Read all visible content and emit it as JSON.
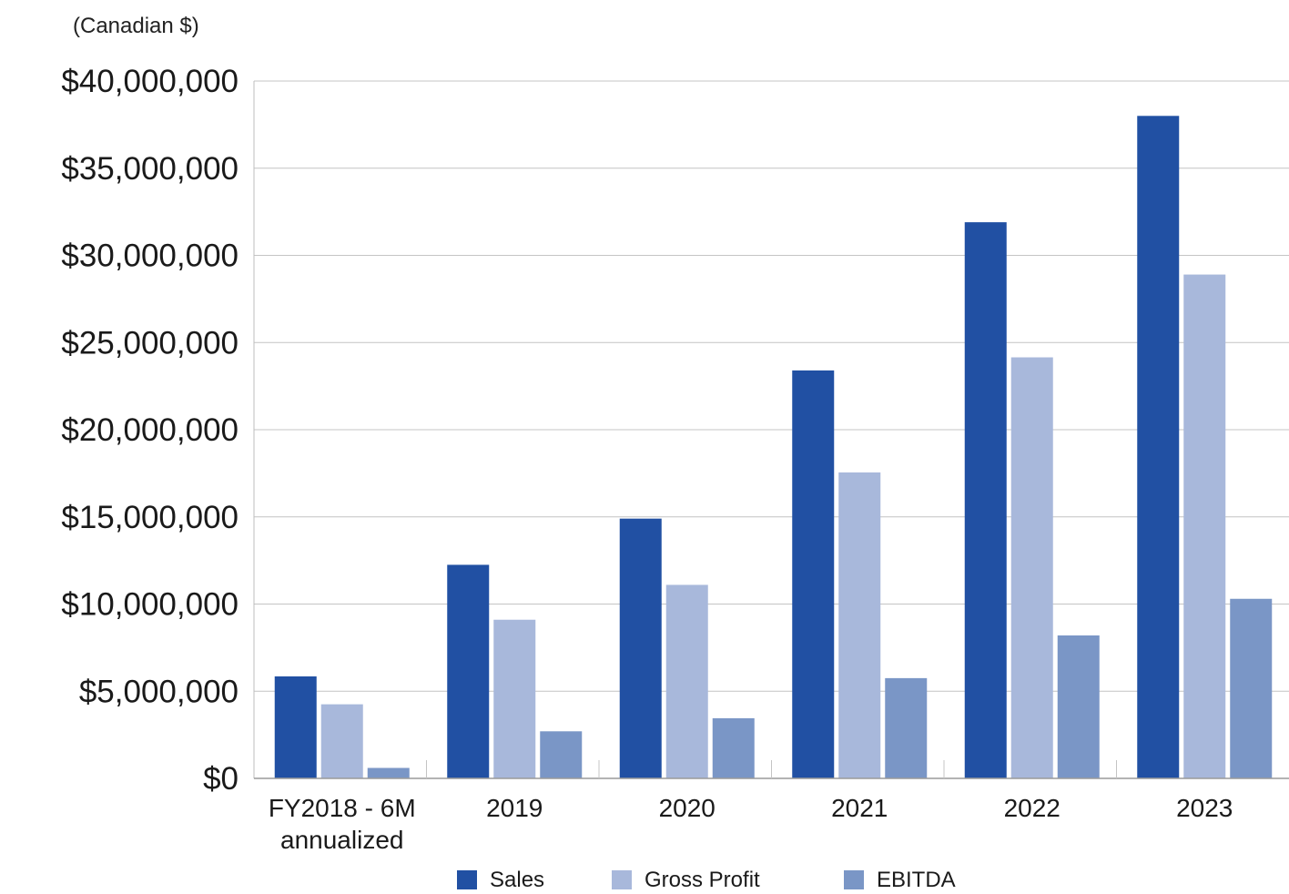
{
  "chart_data": {
    "type": "bar",
    "units_label": "(Canadian $)",
    "categories": [
      [
        "FY2018 - 6M",
        "annualized"
      ],
      [
        "2019"
      ],
      [
        "2020"
      ],
      [
        "2021"
      ],
      [
        "2022"
      ],
      [
        "2023"
      ]
    ],
    "series": [
      {
        "name": "Sales",
        "color": "#2150a3",
        "values": [
          5850000,
          12250000,
          14900000,
          23400000,
          31900000,
          38000000
        ]
      },
      {
        "name": "Gross Profit",
        "color": "#a8b8db",
        "values": [
          4250000,
          9100000,
          11100000,
          17550000,
          24150000,
          28900000
        ]
      },
      {
        "name": "EBITDA",
        "color": "#7a96c6",
        "values": [
          600000,
          2700000,
          3450000,
          5750000,
          8200000,
          10300000
        ]
      }
    ],
    "y_ticks": [
      {
        "value": 0,
        "label": "$0"
      },
      {
        "value": 5000000,
        "label": "$5,000,000"
      },
      {
        "value": 10000000,
        "label": "$10,000,000"
      },
      {
        "value": 15000000,
        "label": "$15,000,000"
      },
      {
        "value": 20000000,
        "label": "$20,000,000"
      },
      {
        "value": 25000000,
        "label": "$25,000,000"
      },
      {
        "value": 30000000,
        "label": "$30,000,000"
      },
      {
        "value": 35000000,
        "label": "$35,000,000"
      },
      {
        "value": 40000000,
        "label": "$40,000,000"
      }
    ],
    "ylim": [
      0,
      40000000
    ],
    "grid": true,
    "legend_position": "bottom"
  }
}
